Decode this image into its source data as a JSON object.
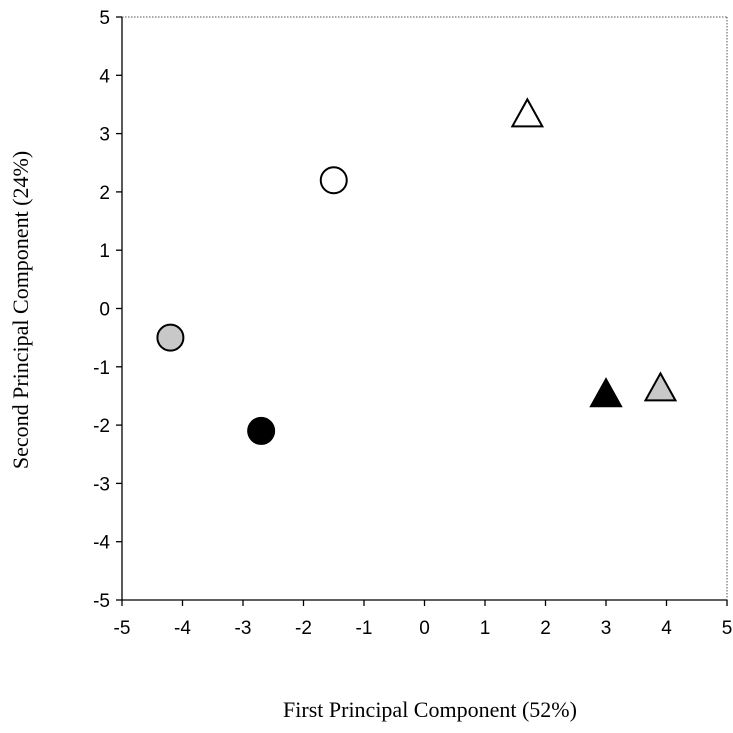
{
  "chart_data": {
    "type": "scatter",
    "title": "",
    "xlabel": "First Principal Component (52%)",
    "ylabel": "Second Principal Component (24%)",
    "xlim": [
      -5,
      5
    ],
    "ylim": [
      -5,
      5
    ],
    "x_ticks": [
      -5,
      -4,
      -3,
      -2,
      -1,
      0,
      1,
      2,
      3,
      4,
      5
    ],
    "y_ticks": [
      -5,
      -4,
      -3,
      -2,
      -1,
      0,
      1,
      2,
      3,
      4,
      5
    ],
    "grid": false,
    "legend": "none",
    "points": [
      {
        "x": -4.2,
        "y": -0.5,
        "marker": "circle",
        "fill": "#c8c8c8"
      },
      {
        "x": -2.7,
        "y": -2.1,
        "marker": "circle",
        "fill": "#000000"
      },
      {
        "x": -1.5,
        "y": 2.2,
        "marker": "circle",
        "fill": "#ffffff"
      },
      {
        "x": 1.7,
        "y": 3.3,
        "marker": "triangle",
        "fill": "#ffffff"
      },
      {
        "x": 3.0,
        "y": -1.5,
        "marker": "triangle",
        "fill": "#000000"
      },
      {
        "x": 3.9,
        "y": -1.4,
        "marker": "triangle",
        "fill": "#c8c8c8"
      }
    ]
  }
}
